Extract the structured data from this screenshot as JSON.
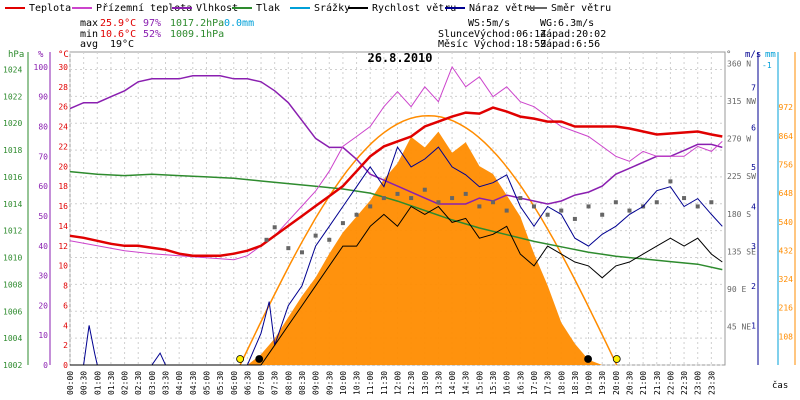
{
  "legend": [
    {
      "label": "Teplota",
      "color": "#e00000"
    },
    {
      "label": "Přízemní teplota",
      "color": "#cc44cc"
    },
    {
      "label": "Vlhkost",
      "color": "#8a1fb0"
    },
    {
      "label": "Tlak",
      "color": "#2e8b2e"
    },
    {
      "label": "Srážky",
      "color": "#00a0d8"
    },
    {
      "label": "Rychlost větru",
      "color": "#000000"
    },
    {
      "label": "Náraz větru",
      "color": "#000090"
    },
    {
      "label": "Směr větru",
      "color": "#666666"
    }
  ],
  "stats": {
    "max_label": "max",
    "max_temp": "25.9°C",
    "max_hum": "97%",
    "max_press": "1017.2hPa",
    "precip": "0.0mm",
    "min_label": "min",
    "min_temp": "10.6°C",
    "min_hum": "52%",
    "min_press": "1009.1hPa",
    "avg_label": "avg",
    "avg_temp": "19°C"
  },
  "wind_info": {
    "ws": "WS:5m/s",
    "wg": "WG:6.3m/s"
  },
  "sun": {
    "label": "Slunce",
    "rise": "Východ:06:14",
    "set": "Západ:20:02"
  },
  "moon": {
    "label": "Měsíc",
    "rise": "Východ:18:59",
    "set": "Západ:6:56"
  },
  "date": "26.8.2010",
  "units": {
    "hpa": "hPa",
    "pct": "%",
    "degc": "°C",
    "deg": "°",
    "ms": "m/s",
    "mm": "mm",
    "wm2": "W/m²"
  },
  "time_axis_label": "čas",
  "colors": {
    "temp": "#e00000",
    "ground": "#cc44cc",
    "hum": "#8a1fb0",
    "press": "#2e8b2e",
    "rain": "#00a0d8",
    "wind": "#000000",
    "gust": "#000090",
    "dir": "#666666",
    "solar": "#ff8c00",
    "grid": "#d0d0d0"
  },
  "chart_data": {
    "type": "line",
    "x_ticks": [
      "00:00",
      "00:30",
      "01:00",
      "01:30",
      "02:00",
      "02:30",
      "03:00",
      "03:30",
      "04:00",
      "04:30",
      "05:00",
      "05:30",
      "06:00",
      "06:30",
      "07:00",
      "07:30",
      "08:00",
      "08:30",
      "09:00",
      "09:30",
      "10:00",
      "10:30",
      "11:00",
      "11:30",
      "12:00",
      "12:30",
      "13:00",
      "13:30",
      "14:00",
      "14:30",
      "15:00",
      "15:30",
      "16:00",
      "16:30",
      "17:00",
      "17:30",
      "18:00",
      "18:30",
      "19:00",
      "19:30",
      "20:00",
      "20:30",
      "21:00",
      "21:30",
      "22:00",
      "22:30",
      "23:00",
      "23:30"
    ],
    "axes": {
      "pressure": {
        "ticks": [
          "1002",
          "1004",
          "1006",
          "1008",
          "1010",
          "1012",
          "1014",
          "1016",
          "1018",
          "1020",
          "1022",
          "1024"
        ],
        "range": [
          1002,
          1025.3
        ]
      },
      "humidity": {
        "ticks": [
          "0",
          "10",
          "20",
          "30",
          "40",
          "50",
          "60",
          "70",
          "80",
          "90",
          "100"
        ],
        "range": [
          0,
          105
        ]
      },
      "temperature": {
        "ticks": [
          "0",
          "2",
          "4",
          "6",
          "8",
          "10",
          "12",
          "14",
          "16",
          "18",
          "20",
          "22",
          "24",
          "26",
          "28",
          "30"
        ],
        "range": [
          0,
          31.5
        ]
      },
      "direction": {
        "ticks": [
          "45 NE",
          "90 E",
          "135 SE",
          "180 S",
          "225 SW",
          "270 W",
          "315 NW",
          "360 N"
        ],
        "range": [
          0,
          375
        ]
      },
      "wind_speed": {
        "ticks": [
          "1",
          "2",
          "3",
          "4",
          "5",
          "6",
          "7"
        ],
        "range": [
          0,
          7.9
        ]
      },
      "precip": {
        "ticks": [
          "-1"
        ]
      },
      "solar": {
        "ticks": [
          "108",
          "216",
          "324",
          "432",
          "540",
          "648",
          "756",
          "864",
          "972"
        ],
        "range": [
          0,
          1180
        ]
      }
    },
    "series": [
      {
        "name": "Teplota",
        "axis": "temperature",
        "x": [
          0,
          0.5,
          1,
          1.5,
          2,
          2.5,
          3,
          3.5,
          4,
          4.5,
          5,
          5.5,
          6,
          6.5,
          7,
          7.5,
          8,
          8.5,
          9,
          9.5,
          10,
          10.5,
          11,
          11.5,
          12,
          12.5,
          13,
          13.5,
          14,
          14.5,
          15,
          15.5,
          16,
          16.5,
          17,
          17.5,
          18,
          18.5,
          19,
          19.5,
          20,
          20.5,
          21,
          21.5,
          22,
          22.5,
          23,
          23.5,
          23.9
        ],
        "y": [
          13,
          12.8,
          12.5,
          12.2,
          12,
          12,
          11.8,
          11.6,
          11.2,
          11,
          11,
          11,
          11.2,
          11.5,
          12,
          13,
          14,
          15,
          16,
          17,
          18,
          19.5,
          21,
          22,
          22.5,
          23,
          24,
          24.5,
          25,
          25.4,
          25.3,
          25.9,
          25.5,
          25,
          24.8,
          24.5,
          24.5,
          24,
          24,
          24,
          24,
          23.8,
          23.5,
          23.2,
          23.3,
          23.4,
          23.5,
          23.2,
          23
        ]
      },
      {
        "name": "Přízemní teplota",
        "axis": "temperature",
        "x": [
          0,
          1,
          2,
          3,
          4,
          5,
          6,
          6.5,
          7,
          7.5,
          8,
          8.5,
          9,
          9.5,
          10,
          10.5,
          11,
          11.5,
          12,
          12.5,
          13,
          13.5,
          14,
          14.5,
          15,
          15.5,
          16,
          16.5,
          17,
          17.5,
          18,
          18.5,
          19,
          19.5,
          20,
          20.5,
          21,
          21.5,
          22,
          22.5,
          23,
          23.5,
          23.9
        ],
        "y": [
          12.5,
          12,
          11.5,
          11.2,
          11,
          10.8,
          10.6,
          11,
          12,
          13,
          14.5,
          16,
          17.5,
          19.5,
          22,
          23,
          24,
          26,
          27.5,
          26,
          28,
          26.5,
          30,
          28,
          29,
          27,
          28,
          26.5,
          26,
          25,
          24,
          23.5,
          23,
          22,
          21,
          20.5,
          21.5,
          21,
          21,
          21,
          22,
          21.5,
          22.5
        ]
      },
      {
        "name": "Vlhkost",
        "axis": "humidity",
        "x": [
          0,
          0.5,
          1,
          1.5,
          2,
          2.5,
          3,
          3.5,
          4,
          4.5,
          5,
          5.5,
          6,
          6.5,
          7,
          7.5,
          8,
          8.5,
          9,
          9.5,
          10,
          10.5,
          11,
          11.5,
          12,
          12.5,
          13,
          13.5,
          14,
          14.5,
          15,
          15.5,
          16,
          16.5,
          17,
          17.5,
          18,
          18.5,
          19,
          19.5,
          20,
          20.5,
          21,
          21.5,
          22,
          22.5,
          23,
          23.5,
          23.9
        ],
        "y": [
          86,
          88,
          88,
          90,
          92,
          95,
          96,
          96,
          96,
          97,
          97,
          97,
          96,
          96,
          95,
          92,
          88,
          82,
          76,
          73,
          73,
          69,
          64,
          62,
          60,
          58,
          56,
          54,
          54,
          54,
          56,
          55,
          57,
          56,
          55,
          54,
          55,
          57,
          58,
          60,
          64,
          66,
          68,
          70,
          70,
          72,
          74,
          74,
          73
        ]
      },
      {
        "name": "Tlak",
        "axis": "pressure",
        "x": [
          0,
          1,
          2,
          3,
          4,
          5,
          6,
          7,
          8,
          9,
          10,
          11,
          12,
          13,
          14,
          15,
          16,
          17,
          18,
          19,
          20,
          21,
          22,
          23,
          23.9
        ],
        "y": [
          1016.4,
          1016.2,
          1016.1,
          1016.2,
          1016.1,
          1016.0,
          1015.9,
          1015.7,
          1015.5,
          1015.3,
          1015.1,
          1014.8,
          1014.2,
          1013.5,
          1012.8,
          1012.2,
          1011.7,
          1011.2,
          1010.8,
          1010.4,
          1010.1,
          1009.9,
          1009.7,
          1009.5,
          1009.1
        ]
      },
      {
        "name": "Rychlost větru",
        "axis": "wind_speed",
        "x": [
          0,
          0.5,
          1,
          1.5,
          2,
          2.5,
          3,
          3.5,
          4,
          4.5,
          5,
          5.5,
          6,
          6.5,
          7,
          7.5,
          8,
          8.5,
          9,
          9.5,
          10,
          10.5,
          11,
          11.5,
          12,
          12.5,
          13,
          13.5,
          14,
          14.5,
          15,
          15.5,
          16,
          16.5,
          17,
          17.5,
          18,
          18.5,
          19,
          19.5,
          20,
          20.5,
          21,
          21.5,
          22,
          22.5,
          23,
          23.5,
          23.9
        ],
        "y": [
          0,
          0,
          0,
          0,
          0,
          0,
          0,
          0,
          0,
          0,
          0,
          0,
          0,
          0,
          0,
          0.5,
          1,
          1.5,
          2,
          2.5,
          3,
          3,
          3.5,
          3.8,
          3.5,
          4,
          3.8,
          4,
          3.6,
          3.7,
          3.2,
          3.3,
          3.5,
          2.8,
          2.5,
          3,
          2.8,
          2.6,
          2.5,
          2.2,
          2.5,
          2.6,
          2.8,
          3,
          3.2,
          3,
          3.2,
          2.8,
          2.6
        ]
      },
      {
        "name": "Náraz větru",
        "axis": "wind_speed",
        "x": [
          0,
          0.5,
          0.7,
          0.9,
          1,
          1.5,
          2,
          2.5,
          3,
          3.3,
          3.5,
          4,
          4.5,
          5,
          5.5,
          6,
          6.5,
          7,
          7.3,
          7.5,
          8,
          8.5,
          9,
          9.5,
          10,
          10.5,
          11,
          11.5,
          12,
          12.5,
          13,
          13.5,
          14,
          14.5,
          15,
          15.5,
          16,
          16.5,
          17,
          17.5,
          18,
          18.5,
          19,
          19.5,
          20,
          20.5,
          21,
          21.5,
          22,
          22.5,
          23,
          23.5,
          23.9
        ],
        "y": [
          0,
          0,
          1,
          0.3,
          0,
          0,
          0,
          0,
          0,
          0.3,
          0,
          0,
          0,
          0,
          0,
          0,
          0,
          0.8,
          1.6,
          0.5,
          1.5,
          2,
          3,
          3.5,
          4,
          4.5,
          5,
          4.5,
          5.5,
          5,
          5.2,
          5.5,
          5,
          4.8,
          4.5,
          4.6,
          4.8,
          4,
          3.5,
          4,
          3.8,
          3.2,
          3,
          3.3,
          3.5,
          3.8,
          4,
          4.4,
          4.5,
          4,
          4.2,
          3.8,
          3.5
        ]
      },
      {
        "name": "Směr větru",
        "axis": "direction",
        "x": [
          7.2,
          7.5,
          8,
          8.5,
          9,
          9.5,
          10,
          10.5,
          11,
          11.5,
          12,
          12.5,
          13,
          13.5,
          14,
          14.5,
          15,
          15.5,
          16,
          16.5,
          17,
          17.5,
          18,
          18.5,
          19,
          19.5,
          20,
          20.5,
          21,
          21.5,
          22,
          22.5,
          23,
          23.5
        ],
        "y": [
          150,
          165,
          140,
          135,
          155,
          150,
          170,
          180,
          190,
          200,
          205,
          200,
          210,
          195,
          200,
          205,
          190,
          195,
          185,
          200,
          190,
          180,
          185,
          175,
          190,
          180,
          195,
          185,
          190,
          195,
          220,
          200,
          190,
          195
        ]
      },
      {
        "name": "Sluneční záření",
        "axis": "solar",
        "x": [
          6.5,
          7,
          7.5,
          8,
          8.5,
          9,
          9.5,
          10,
          10.5,
          11,
          11.5,
          12,
          12.5,
          13,
          13.5,
          14,
          14.5,
          15,
          15.5,
          16,
          16.5,
          17,
          17.5,
          18,
          18.5,
          19,
          19.5
        ],
        "y": [
          0,
          40,
          100,
          180,
          260,
          330,
          420,
          500,
          560,
          620,
          700,
          760,
          860,
          820,
          880,
          800,
          840,
          750,
          720,
          640,
          560,
          420,
          300,
          160,
          80,
          20,
          0
        ]
      }
    ],
    "markers": {
      "sunrise_time": "06:14",
      "sunset_time": "20:02",
      "moonrise_time": "18:59",
      "moonset_time": "6:56"
    }
  }
}
